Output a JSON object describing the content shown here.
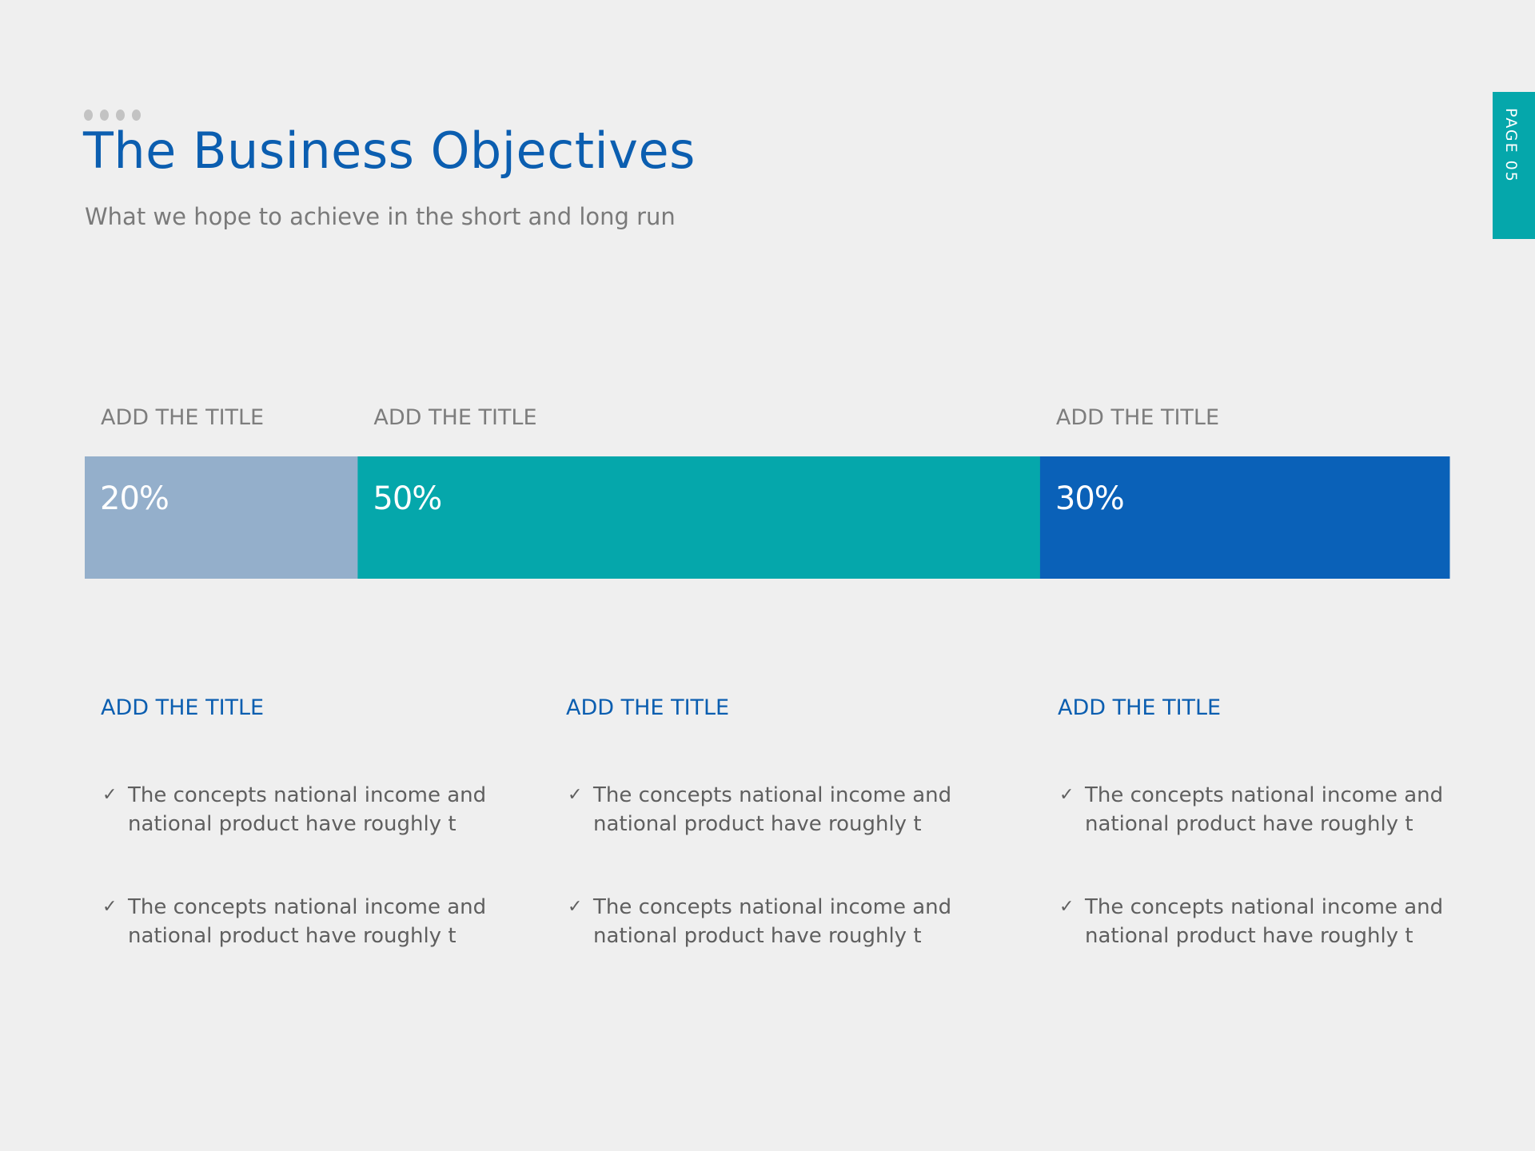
{
  "header": {
    "title": "The Business Objectives",
    "subtitle": "What we hope to achieve in the short and long run"
  },
  "page_tab": {
    "label": "PAGE 05",
    "color": "#05a7ab"
  },
  "chart_data": {
    "type": "bar",
    "orientation": "horizontal-stacked-100",
    "categories": [
      "ADD THE TITLE",
      "ADD THE TITLE",
      "ADD THE TITLE"
    ],
    "values": [
      20,
      50,
      30
    ],
    "value_labels": [
      "20%",
      "50%",
      "30%"
    ],
    "colors": [
      "#94afcb",
      "#05a7ab",
      "#0a61b8"
    ],
    "unit": "%"
  },
  "columns": [
    {
      "title": "ADD THE TITLE",
      "bullets": [
        "The concepts national income and national product have roughly t",
        "The concepts national income and national product have roughly t"
      ]
    },
    {
      "title": "ADD THE TITLE",
      "bullets": [
        "The concepts national income and national product have roughly t",
        "The concepts national income and national product have roughly t"
      ]
    },
    {
      "title": "ADD THE TITLE",
      "bullets": [
        "The concepts national income and national product have roughly t",
        "The concepts national income and national product have roughly t"
      ]
    }
  ],
  "colors": {
    "accent": "#0b5eb0",
    "text": "#5f5f5f",
    "background": "#efefef"
  },
  "icons": {
    "bullet": "check-icon",
    "header": "dots-icon"
  }
}
